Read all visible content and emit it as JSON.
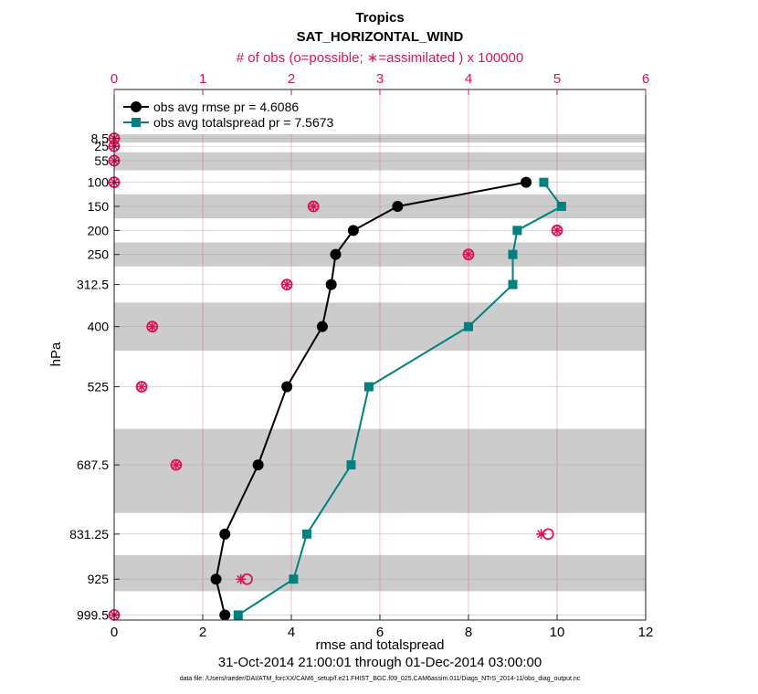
{
  "chart_data": {
    "type": "line",
    "title": "Tropics",
    "subtitle": "SAT_HORIZONTAL_WIND",
    "top_axis_label": "# of obs (o=possible; ∗=assimilated ) x 100000",
    "xlabel": "rmse and totalspread",
    "ylabel": "hPa",
    "date_range": "31-Oct-2014 21:00:01 through 01-Dec-2014 03:00:00",
    "data_file": "data file: /Users/raeder/DAI/ATM_forcXX/CAM6_setup/f.e21.FHIST_BGC.f09_025.CAM6assim.011/Diags_NTrS_2014-11/obs_diag_output.nc",
    "xlim": [
      0,
      12
    ],
    "x_ticks": [
      "0",
      "2",
      "4",
      "6",
      "8",
      "10",
      "12"
    ],
    "top_xlim": [
      0,
      6
    ],
    "top_ticks": [
      "0",
      "1",
      "2",
      "3",
      "4",
      "5",
      "6"
    ],
    "y_ticks": [
      "8.5",
      "25",
      "55",
      "100",
      "150",
      "200",
      "250",
      "312.5",
      "400",
      "525",
      "687.5",
      "831.25",
      "925",
      "999.5"
    ],
    "levels": [
      8.5,
      25,
      55,
      100,
      150,
      200,
      250,
      312.5,
      400,
      525,
      687.5,
      831.25,
      925,
      999.5
    ],
    "shaded_bands": [
      [
        0,
        17
      ],
      [
        37.5,
        75
      ],
      [
        125,
        175
      ],
      [
        225,
        275
      ],
      [
        350,
        450
      ],
      [
        612.5,
        787.5
      ],
      [
        875,
        950
      ]
    ],
    "legend": [
      {
        "label": "obs avg rmse pr = 4.6086",
        "color": "#000000",
        "marker": "circle"
      },
      {
        "label": "obs avg totalspread pr = 7.5673",
        "color": "#008080",
        "marker": "square"
      }
    ],
    "series": [
      {
        "name": "rmse",
        "color": "#000000",
        "levels": [
          100,
          150,
          200,
          250,
          312.5,
          400,
          525,
          687.5,
          831.25,
          925,
          999.5
        ],
        "values": [
          9.3,
          6.4,
          5.4,
          5.0,
          4.9,
          4.7,
          3.9,
          3.25,
          2.5,
          2.3,
          2.5
        ]
      },
      {
        "name": "totalspread",
        "color": "#008080",
        "levels": [
          100,
          150,
          200,
          250,
          312.5,
          400,
          525,
          687.5,
          831.25,
          925,
          999.5
        ],
        "values": [
          9.7,
          10.1,
          9.1,
          9.0,
          9.0,
          8.0,
          5.75,
          5.35,
          4.35,
          4.05,
          2.8
        ]
      }
    ],
    "obs_counts": {
      "color": "#e0105a",
      "possible": [
        {
          "level": 8.5,
          "value": 0
        },
        {
          "level": 25,
          "value": 0
        },
        {
          "level": 55,
          "value": 0
        },
        {
          "level": 100,
          "value": 0
        },
        {
          "level": 150,
          "value": 2.25
        },
        {
          "level": 200,
          "value": 5.0
        },
        {
          "level": 250,
          "value": 4.0
        },
        {
          "level": 312.5,
          "value": 1.95
        },
        {
          "level": 400,
          "value": 0.43
        },
        {
          "level": 525,
          "value": 0.31
        },
        {
          "level": 687.5,
          "value": 0.7
        },
        {
          "level": 831.25,
          "value": 4.9
        },
        {
          "level": 925,
          "value": 1.5
        },
        {
          "level": 999.5,
          "value": 0
        }
      ],
      "assimilated": [
        {
          "level": 8.5,
          "value": 0
        },
        {
          "level": 25,
          "value": 0
        },
        {
          "level": 55,
          "value": 0
        },
        {
          "level": 100,
          "value": 0
        },
        {
          "level": 150,
          "value": 2.25
        },
        {
          "level": 200,
          "value": 5.0
        },
        {
          "level": 250,
          "value": 4.0
        },
        {
          "level": 312.5,
          "value": 1.95
        },
        {
          "level": 400,
          "value": 0.43
        },
        {
          "level": 525,
          "value": 0.31
        },
        {
          "level": 687.5,
          "value": 0.7
        },
        {
          "level": 831.25,
          "value": 4.82
        },
        {
          "level": 925,
          "value": 1.43
        },
        {
          "level": 999.5,
          "value": 0
        }
      ]
    }
  }
}
